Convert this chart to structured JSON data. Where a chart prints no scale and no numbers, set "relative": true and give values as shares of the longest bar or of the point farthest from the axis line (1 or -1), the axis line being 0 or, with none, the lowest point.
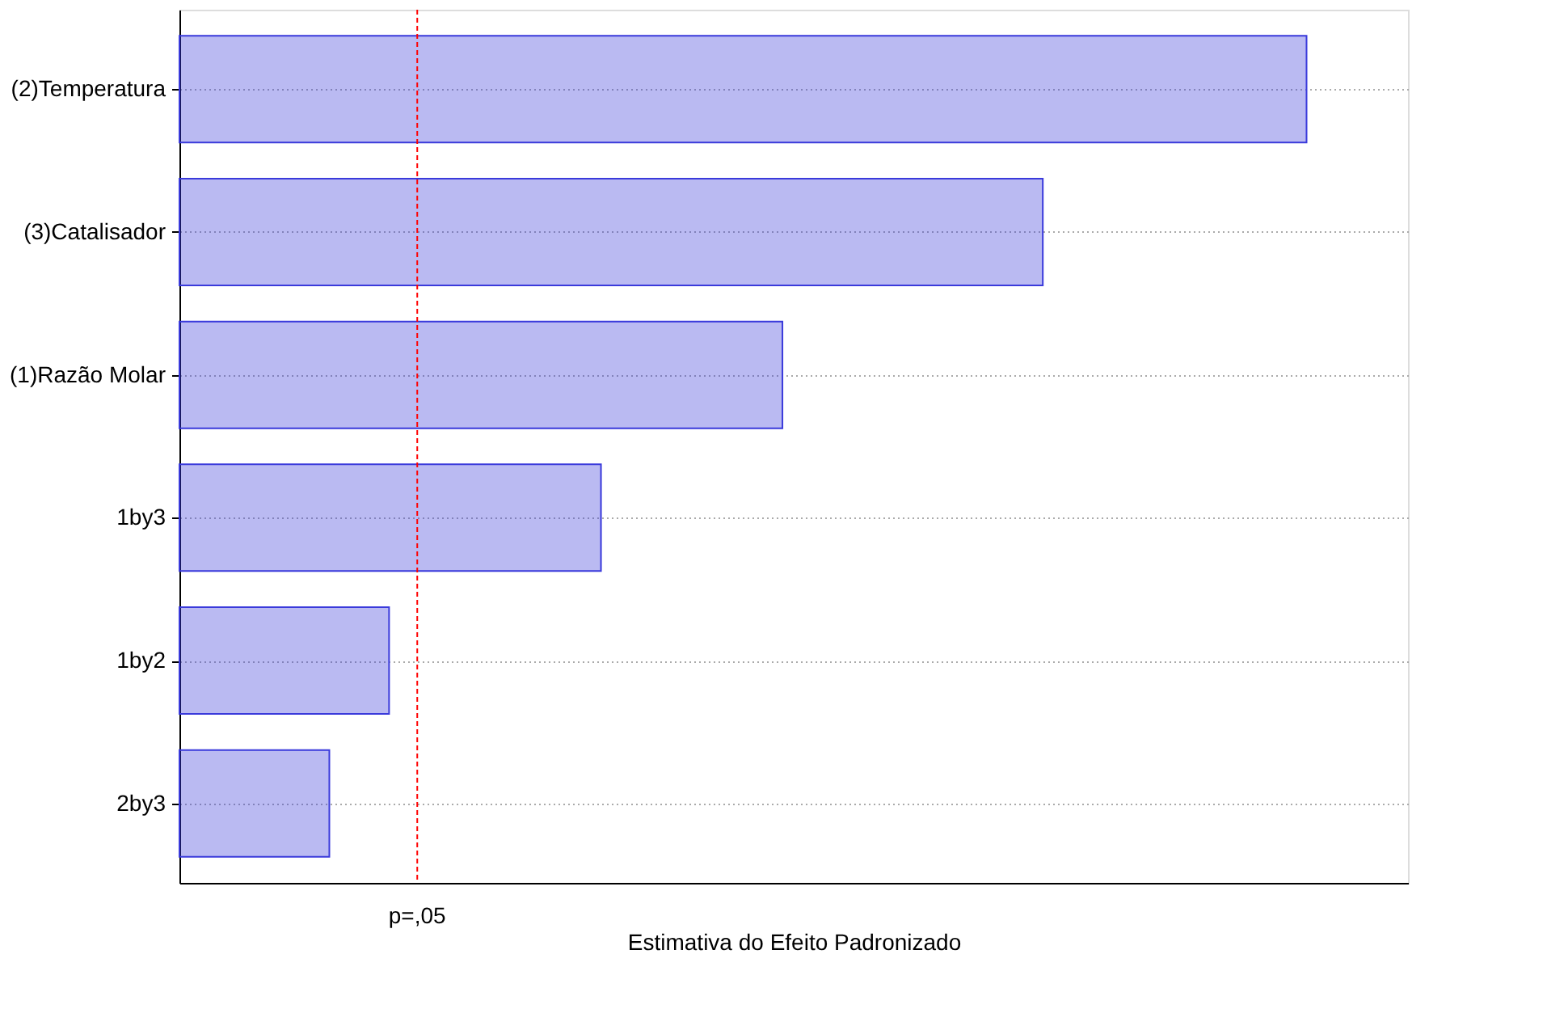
{
  "chart_data": {
    "type": "bar",
    "orientation": "horizontal",
    "relative": true,
    "xlabel": "Estimativa do Efeito Padronizado",
    "categories": [
      "(2)Temperatura",
      "(3)Catalisador",
      "(1)Razão Molar",
      "1by3",
      "1by2",
      "2by3"
    ],
    "values": [
      1,
      0.766,
      0.535,
      0.374,
      0.186,
      0.133
    ],
    "color": "#3a3adb",
    "grid": "y",
    "ref_lines": [
      {
        "axis": "x",
        "value": 0.211,
        "label": "p=,05",
        "color": "#ff0000",
        "line_style": "dashed"
      }
    ]
  }
}
